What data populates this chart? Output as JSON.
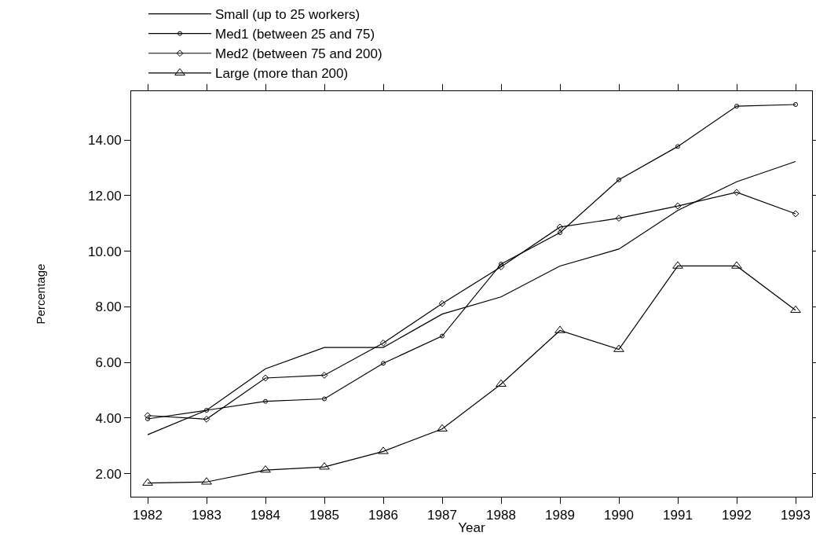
{
  "chart_data": {
    "type": "line",
    "xlabel": "Year",
    "ylabel": "Percentage",
    "x": [
      1982,
      1983,
      1984,
      1985,
      1986,
      1987,
      1988,
      1989,
      1990,
      1991,
      1992,
      1993
    ],
    "series": [
      {
        "name": "Small (up to 25 workers)",
        "color": "#000000",
        "marker": "none",
        "values": [
          3.4,
          4.28,
          5.77,
          6.54,
          6.54,
          7.74,
          8.36,
          9.47,
          10.08,
          11.47,
          12.5,
          13.23
        ]
      },
      {
        "name": "Med1 (between 25 and 75)",
        "color": "#000000",
        "marker": "circle",
        "values": [
          3.97,
          4.28,
          4.6,
          4.69,
          5.97,
          6.95,
          9.54,
          10.67,
          12.57,
          13.77,
          15.22,
          15.28
        ]
      },
      {
        "name": "Med2 (between 75 and 200)",
        "color": "#000000",
        "marker": "diamond",
        "values": [
          4.09,
          3.96,
          5.44,
          5.54,
          6.7,
          8.12,
          9.44,
          10.87,
          11.19,
          11.63,
          12.12,
          11.35
        ]
      },
      {
        "name": "Large (more than 200)",
        "color": "#000000",
        "marker": "triangle",
        "values": [
          1.66,
          1.7,
          2.13,
          2.24,
          2.8,
          3.61,
          5.22,
          7.15,
          6.47,
          9.47,
          9.47,
          7.88
        ]
      }
    ],
    "xlim": [
      1981.72,
      1993.28
    ],
    "xticks": [
      1982,
      1983,
      1984,
      1985,
      1986,
      1987,
      1988,
      1989,
      1990,
      1991,
      1992,
      1993
    ],
    "ylim": [
      1.17,
      15.76
    ],
    "yticks": [
      {
        "value": 2,
        "label": "2.00"
      },
      {
        "value": 4,
        "label": "4.00"
      },
      {
        "value": 6,
        "label": "6.00"
      },
      {
        "value": 8,
        "label": "8.00"
      },
      {
        "value": 10,
        "label": "10.00"
      },
      {
        "value": 12,
        "label": "12.00"
      },
      {
        "value": 14,
        "label": "14.00"
      }
    ],
    "grid": false,
    "legend": "top",
    "line_style": "solid"
  }
}
